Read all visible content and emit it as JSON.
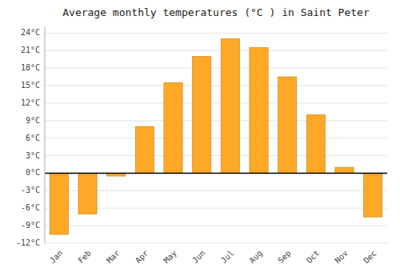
{
  "chart_data": {
    "type": "bar",
    "title": "Average monthly temperatures (°C ) in Saint Peter",
    "categories": [
      "Jan",
      "Feb",
      "Mar",
      "Apr",
      "May",
      "Jun",
      "Jul",
      "Aug",
      "Sep",
      "Oct",
      "Nov",
      "Dec"
    ],
    "values": [
      -10.5,
      -7.0,
      -0.5,
      8.0,
      15.5,
      20.0,
      23.0,
      21.5,
      16.5,
      10.0,
      1.0,
      -7.5
    ],
    "color": "#FFA726",
    "ylim": [
      -12,
      25
    ],
    "yticks": [
      {
        "value": -12,
        "label": "-12°C"
      },
      {
        "value": -9,
        "label": "-9°C"
      },
      {
        "value": -6,
        "label": "-6°C"
      },
      {
        "value": -3,
        "label": "-3°C"
      },
      {
        "value": 0,
        "label": "0°C"
      },
      {
        "value": 3,
        "label": "3°C"
      },
      {
        "value": 6,
        "label": "6°C"
      },
      {
        "value": 9,
        "label": "9°C"
      },
      {
        "value": 12,
        "label": "12°C"
      },
      {
        "value": 15,
        "label": "15°C"
      },
      {
        "value": 18,
        "label": "18°C"
      },
      {
        "value": 21,
        "label": "21°C"
      },
      {
        "value": 24,
        "label": "24°C"
      }
    ],
    "grid": true
  }
}
